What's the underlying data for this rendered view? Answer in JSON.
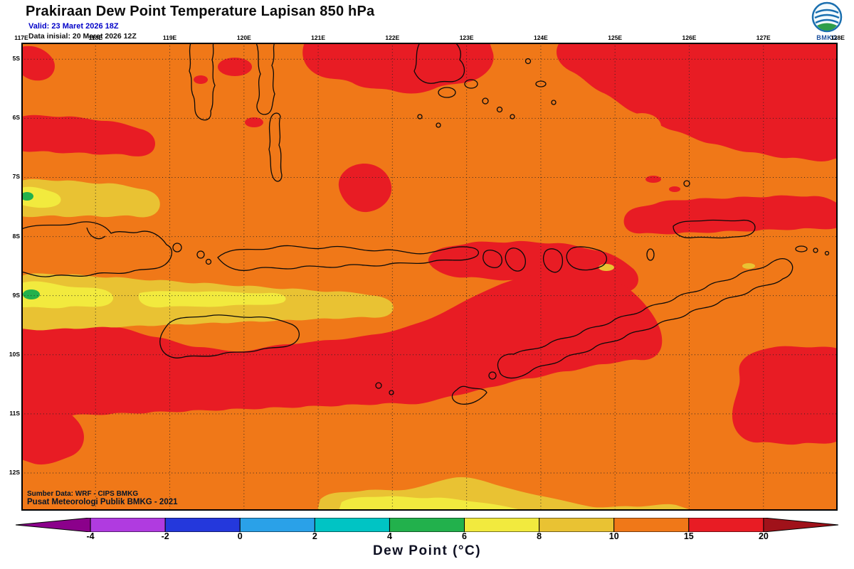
{
  "header": {
    "title": "Prakiraan Dew Point Temperature Lapisan 850 hPa",
    "valid_line": "Valid: 23 Maret 2026 18Z",
    "init_line": "Data inisial: 20 Maret 2026 12Z",
    "logo_label": "BMKG"
  },
  "map": {
    "lon_labels": [
      "117E",
      "118E",
      "119E",
      "120E",
      "121E",
      "122E",
      "123E",
      "124E",
      "125E",
      "126E",
      "127E",
      "128E"
    ],
    "lat_labels": [
      "5S",
      "6S",
      "7S",
      "8S",
      "9S",
      "10S",
      "11S",
      "12S"
    ],
    "source_line": "Sumber Data: WRF - CIPS BMKG",
    "credit_line": "Pusat Meteorologi Publik BMKG - 2021"
  },
  "legend": {
    "title": "Dew Point (°C)",
    "stops": [
      "-4",
      "-2",
      "0",
      "2",
      "4",
      "6",
      "8",
      "10",
      "15",
      "20"
    ],
    "segment_colors": [
      "#8B008B",
      "#B03BE0",
      "#2438DC",
      "#2AA1E8",
      "#00C4C4",
      "#22B14C",
      "#F2EA3E",
      "#E9C233",
      "#F07818",
      "#E81C24",
      "#A0121A"
    ]
  },
  "colors": {
    "field_orange": "#F07818",
    "field_red": "#E81C24",
    "field_gold": "#E9C233",
    "field_yellow": "#F2EA3E",
    "field_green": "#22B14C",
    "coastline": "#0A0A0A",
    "grid": "#222222",
    "valid_text": "#0000C8"
  }
}
